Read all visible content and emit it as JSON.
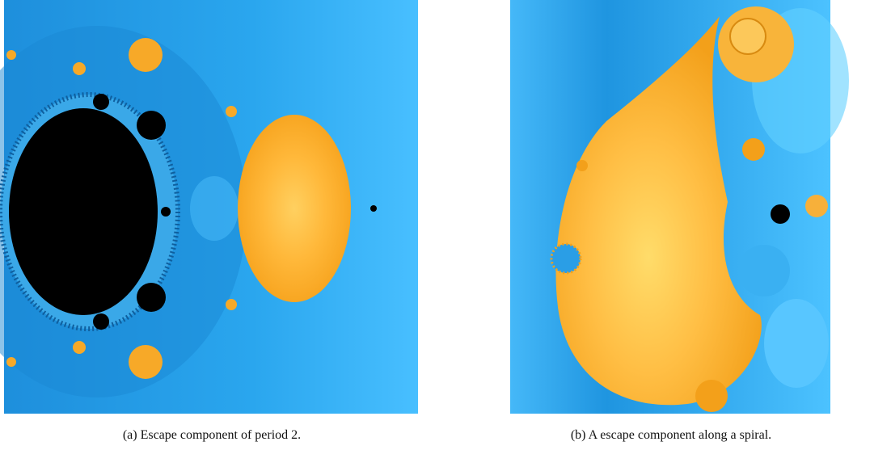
{
  "figure": {
    "subfigures": [
      {
        "caption": "(a) Escape component of period 2."
      },
      {
        "caption": "(b) A escape component along a spiral."
      }
    ]
  }
}
